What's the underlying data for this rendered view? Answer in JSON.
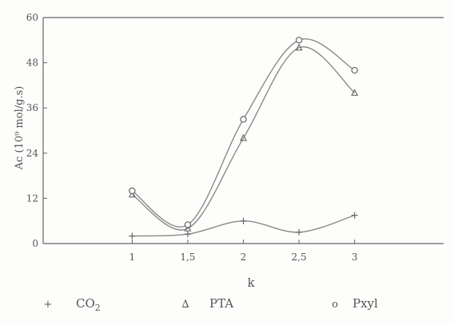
{
  "chart_data": {
    "type": "line",
    "title": "",
    "xlabel": "k",
    "ylabel": "Ac  (10⁹ mol/g.s)",
    "x": [
      1,
      1.5,
      2,
      2.5,
      3
    ],
    "x_tick_labels": [
      "1",
      "1,5",
      "2",
      "2,5",
      "3"
    ],
    "xlim": [
      0.2,
      3.8
    ],
    "y_ticks": [
      0,
      12,
      24,
      36,
      48,
      60
    ],
    "y_tick_labels": [
      "0",
      "12",
      "24",
      "36",
      "48",
      "60"
    ],
    "ylim": [
      0,
      60
    ],
    "grid": false,
    "legend_position": "bottom",
    "series": [
      {
        "name": "CO2",
        "marker": "+",
        "color": "#8a8a8a",
        "values": [
          2,
          2.5,
          6,
          3,
          7.5
        ]
      },
      {
        "name": "PTA",
        "marker": "triangle",
        "color": "#8a8a8a",
        "values": [
          13,
          4,
          28,
          52,
          40
        ]
      },
      {
        "name": "Pxyl",
        "marker": "o",
        "color": "#8a8a8a",
        "values": [
          14,
          5,
          33,
          54,
          46
        ]
      }
    ],
    "legend": [
      {
        "symbol": "+",
        "label": "CO",
        "sub": "2"
      },
      {
        "symbol": "∆",
        "label": "PTA",
        "sub": ""
      },
      {
        "symbol": "o",
        "label": "Pxyl",
        "sub": ""
      }
    ]
  }
}
